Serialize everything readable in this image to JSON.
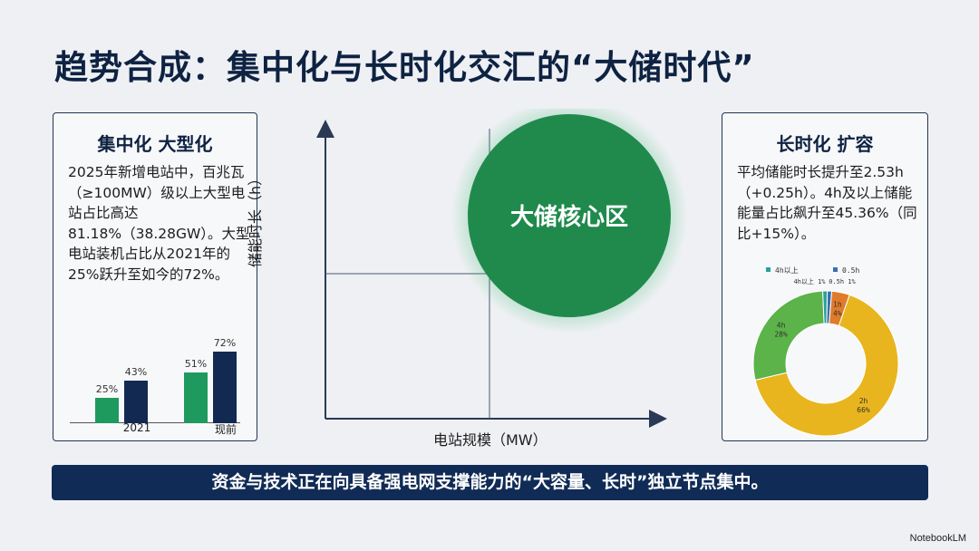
{
  "title": "趋势合成：集中化与长时化交汇的“大储时代”",
  "left_card": {
    "heading": "集中化 大型化",
    "body": "2025年新增电站中，百兆瓦（≥100MW）级以上大型电站占比高达81.18%（38.28GW）。大型电站装机占比从2021年的25%跃升至如今的72%。",
    "chart_data": {
      "type": "bar",
      "categories": [
        "2021",
        "现前"
      ],
      "series": [
        {
          "values": [
            25,
            51
          ],
          "color": "#1f9a5e"
        },
        {
          "values": [
            43,
            72
          ],
          "color": "#122a52"
        }
      ],
      "value_labels": [
        [
          "25%",
          "43%"
        ],
        [
          "51%",
          "72%"
        ]
      ]
    }
  },
  "center_chart": {
    "y_axis_label": "储能时长（h）",
    "x_axis_label": "电站规模（MW）",
    "core_label": "大储核心区",
    "core_color": "#1f8a4c"
  },
  "right_card": {
    "heading": "长时化 扩容",
    "body": "平均储能时长提升至2.53h（+0.25h）。4h及以上储能能量占比飙升至45.36%（同比+15%）。",
    "chart_data": {
      "type": "pie",
      "donut": true,
      "slices": [
        {
          "label": "0.5h",
          "value": 1,
          "pct_label": "1%",
          "color": "#3a6fb0"
        },
        {
          "label": "1h",
          "value": 4,
          "pct_label": "4%",
          "color": "#e07b2c"
        },
        {
          "label": "2h",
          "value": 66,
          "pct_label": "66%",
          "color": "#e8b51e"
        },
        {
          "label": "4h",
          "value": 28,
          "pct_label": "28%",
          "color": "#5bb34a"
        },
        {
          "label": "4h以上",
          "value": 1,
          "pct_label": "1%",
          "color": "#2aa198"
        }
      ],
      "legend": [
        {
          "label": "4h以上",
          "color": "#2aa198"
        },
        {
          "label": "0.5h",
          "color": "#3a6fb0"
        }
      ]
    }
  },
  "banner": "资金与技术正在向具备强电网支撑能力的“大容量、长时”独立节点集中。",
  "watermark": "NotebookLM"
}
